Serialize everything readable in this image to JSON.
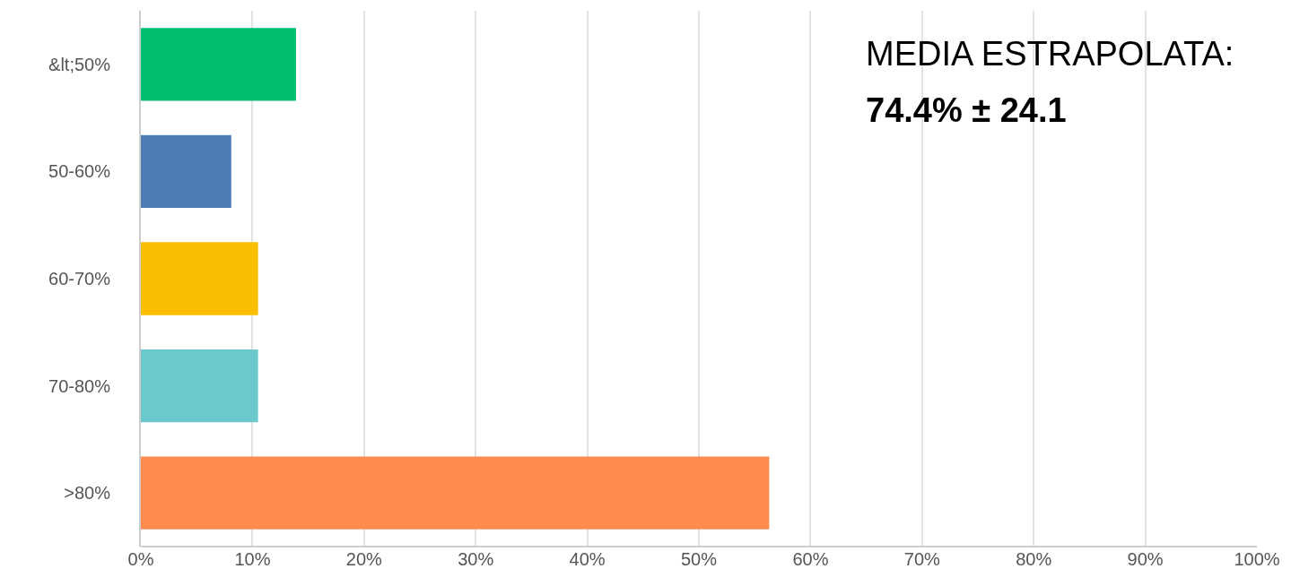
{
  "chart_data": {
    "type": "bar",
    "orientation": "horizontal",
    "categories": [
      "&lt;50%",
      "50-60%",
      "60-70%",
      "70-80%",
      ">80%"
    ],
    "values": [
      13.9,
      8.1,
      10.5,
      10.5,
      56.3
    ],
    "colors": [
      "#00bf6f",
      "#507cb6",
      "#f9be00",
      "#6bc8cd",
      "#ff8b4f"
    ],
    "xlim": [
      0,
      100
    ],
    "xticks": [
      {
        "value": 0,
        "label": "0%"
      },
      {
        "value": 10,
        "label": "10%"
      },
      {
        "value": 20,
        "label": "20%"
      },
      {
        "value": 30,
        "label": "30%"
      },
      {
        "value": 40,
        "label": "40%"
      },
      {
        "value": 50,
        "label": "50%"
      },
      {
        "value": 60,
        "label": "60%"
      },
      {
        "value": 70,
        "label": "70%"
      },
      {
        "value": 80,
        "label": "80%"
      },
      {
        "value": 90,
        "label": "90%"
      },
      {
        "value": 100,
        "label": "100%"
      }
    ],
    "grid": "x",
    "annotations": [
      "MEDIA ESTRAPOLATA:",
      "74.4% ± 24.1"
    ]
  }
}
